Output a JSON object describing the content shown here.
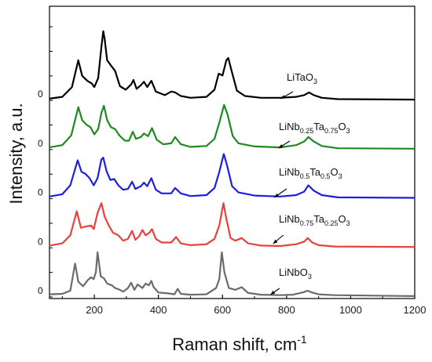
{
  "chart_data": {
    "type": "line",
    "xlabel": "Raman shift, cm",
    "xlabel_superscript": "-1",
    "ylabel": "Intensity, a.u.",
    "xlim": [
      60,
      1200
    ],
    "x_ticks": [
      200,
      400,
      600,
      800,
      1000,
      1200
    ],
    "offset_zero_label": "0",
    "grid": false,
    "series": [
      {
        "name": "LiNbO3",
        "label_parts": [
          {
            "t": "LiNbO",
            "sub": false
          },
          {
            "t": "3",
            "sub": true
          }
        ],
        "color": "#6b6b6b",
        "baseline": 0.0,
        "points": [
          [
            60,
            0.06
          ],
          [
            100,
            0.07
          ],
          [
            125,
            0.14
          ],
          [
            140,
            0.75
          ],
          [
            150,
            0.34
          ],
          [
            165,
            0.24
          ],
          [
            180,
            0.38
          ],
          [
            190,
            0.44
          ],
          [
            198,
            0.4
          ],
          [
            205,
            0.56
          ],
          [
            210,
            1.0
          ],
          [
            220,
            0.46
          ],
          [
            230,
            0.42
          ],
          [
            240,
            0.3
          ],
          [
            255,
            0.26
          ],
          [
            265,
            0.2
          ],
          [
            280,
            0.16
          ],
          [
            290,
            0.12
          ],
          [
            305,
            0.2
          ],
          [
            315,
            0.32
          ],
          [
            325,
            0.16
          ],
          [
            335,
            0.28
          ],
          [
            350,
            0.2
          ],
          [
            360,
            0.3
          ],
          [
            370,
            0.26
          ],
          [
            378,
            0.36
          ],
          [
            385,
            0.22
          ],
          [
            400,
            0.1
          ],
          [
            430,
            0.08
          ],
          [
            450,
            0.06
          ],
          [
            460,
            0.18
          ],
          [
            470,
            0.07
          ],
          [
            500,
            0.05
          ],
          [
            550,
            0.06
          ],
          [
            580,
            0.2
          ],
          [
            590,
            0.4
          ],
          [
            598,
            1.0
          ],
          [
            606,
            0.55
          ],
          [
            620,
            0.2
          ],
          [
            640,
            0.16
          ],
          [
            660,
            0.22
          ],
          [
            680,
            0.09
          ],
          [
            720,
            0.05
          ],
          [
            780,
            0.04
          ],
          [
            820,
            0.05
          ],
          [
            855,
            0.11
          ],
          [
            865,
            0.14
          ],
          [
            880,
            0.1
          ],
          [
            900,
            0.06
          ],
          [
            950,
            0.04
          ],
          [
            1200,
            0.02
          ]
        ]
      },
      {
        "name": "LiNb0.75Ta0.25O3",
        "label_parts": [
          {
            "t": "LiNb",
            "sub": false
          },
          {
            "t": "0.75",
            "sub": true
          },
          {
            "t": "Ta",
            "sub": false
          },
          {
            "t": "0.25",
            "sub": true
          },
          {
            "t": "O",
            "sub": false
          },
          {
            "t": "3",
            "sub": true
          }
        ],
        "color": "#e8413c",
        "baseline": 1.1,
        "points": [
          [
            60,
            0.05
          ],
          [
            100,
            0.1
          ],
          [
            125,
            0.28
          ],
          [
            145,
            0.82
          ],
          [
            158,
            0.45
          ],
          [
            175,
            0.48
          ],
          [
            190,
            0.5
          ],
          [
            198,
            0.42
          ],
          [
            210,
            0.78
          ],
          [
            222,
            1.0
          ],
          [
            232,
            0.7
          ],
          [
            245,
            0.5
          ],
          [
            258,
            0.34
          ],
          [
            275,
            0.28
          ],
          [
            290,
            0.16
          ],
          [
            305,
            0.2
          ],
          [
            318,
            0.38
          ],
          [
            328,
            0.18
          ],
          [
            340,
            0.26
          ],
          [
            350,
            0.4
          ],
          [
            360,
            0.28
          ],
          [
            372,
            0.34
          ],
          [
            380,
            0.42
          ],
          [
            392,
            0.2
          ],
          [
            410,
            0.12
          ],
          [
            440,
            0.12
          ],
          [
            455,
            0.24
          ],
          [
            470,
            0.1
          ],
          [
            500,
            0.06
          ],
          [
            550,
            0.08
          ],
          [
            575,
            0.2
          ],
          [
            590,
            0.5
          ],
          [
            603,
            1.0
          ],
          [
            612,
            0.65
          ],
          [
            625,
            0.22
          ],
          [
            640,
            0.16
          ],
          [
            660,
            0.22
          ],
          [
            680,
            0.1
          ],
          [
            720,
            0.05
          ],
          [
            780,
            0.04
          ],
          [
            830,
            0.08
          ],
          [
            855,
            0.14
          ],
          [
            866,
            0.22
          ],
          [
            880,
            0.12
          ],
          [
            900,
            0.06
          ],
          [
            950,
            0.03
          ],
          [
            1200,
            0.02
          ]
        ]
      },
      {
        "name": "LiNb0.5Ta0.5O3",
        "label_parts": [
          {
            "t": "LiNb",
            "sub": false
          },
          {
            "t": "0.5",
            "sub": true
          },
          {
            "t": "Ta",
            "sub": false
          },
          {
            "t": "0.5",
            "sub": true
          },
          {
            "t": "O",
            "sub": false
          },
          {
            "t": "3",
            "sub": true
          }
        ],
        "color": "#1e1ee0",
        "baseline": 2.2,
        "points": [
          [
            60,
            0.05
          ],
          [
            100,
            0.1
          ],
          [
            125,
            0.3
          ],
          [
            148,
            0.86
          ],
          [
            160,
            0.6
          ],
          [
            172,
            0.56
          ],
          [
            185,
            0.46
          ],
          [
            198,
            0.3
          ],
          [
            210,
            0.46
          ],
          [
            222,
            0.88
          ],
          [
            228,
            0.92
          ],
          [
            238,
            0.62
          ],
          [
            250,
            0.42
          ],
          [
            262,
            0.44
          ],
          [
            275,
            0.3
          ],
          [
            290,
            0.2
          ],
          [
            305,
            0.22
          ],
          [
            318,
            0.38
          ],
          [
            328,
            0.22
          ],
          [
            345,
            0.28
          ],
          [
            355,
            0.36
          ],
          [
            365,
            0.28
          ],
          [
            378,
            0.46
          ],
          [
            392,
            0.2
          ],
          [
            410,
            0.12
          ],
          [
            440,
            0.12
          ],
          [
            452,
            0.24
          ],
          [
            470,
            0.12
          ],
          [
            500,
            0.06
          ],
          [
            550,
            0.08
          ],
          [
            575,
            0.24
          ],
          [
            590,
            0.6
          ],
          [
            604,
            1.0
          ],
          [
            614,
            0.75
          ],
          [
            630,
            0.28
          ],
          [
            650,
            0.14
          ],
          [
            700,
            0.07
          ],
          [
            780,
            0.05
          ],
          [
            830,
            0.08
          ],
          [
            855,
            0.16
          ],
          [
            868,
            0.3
          ],
          [
            885,
            0.18
          ],
          [
            910,
            0.08
          ],
          [
            960,
            0.03
          ],
          [
            1200,
            0.02
          ]
        ]
      },
      {
        "name": "LiNb0.25Ta0.75O3",
        "label_parts": [
          {
            "t": "LiNb",
            "sub": false
          },
          {
            "t": "0.25",
            "sub": true
          },
          {
            "t": "Ta",
            "sub": false
          },
          {
            "t": "0.75",
            "sub": true
          },
          {
            "t": "O",
            "sub": false
          },
          {
            "t": "3",
            "sub": true
          }
        ],
        "color": "#1f8a1f",
        "baseline": 3.3,
        "points": [
          [
            60,
            0.05
          ],
          [
            100,
            0.1
          ],
          [
            128,
            0.32
          ],
          [
            150,
            0.95
          ],
          [
            162,
            0.66
          ],
          [
            175,
            0.56
          ],
          [
            188,
            0.5
          ],
          [
            200,
            0.34
          ],
          [
            212,
            0.46
          ],
          [
            222,
            0.82
          ],
          [
            230,
            0.98
          ],
          [
            240,
            0.66
          ],
          [
            252,
            0.5
          ],
          [
            265,
            0.46
          ],
          [
            278,
            0.32
          ],
          [
            295,
            0.2
          ],
          [
            308,
            0.2
          ],
          [
            320,
            0.4
          ],
          [
            330,
            0.24
          ],
          [
            345,
            0.28
          ],
          [
            355,
            0.36
          ],
          [
            368,
            0.3
          ],
          [
            380,
            0.48
          ],
          [
            395,
            0.22
          ],
          [
            415,
            0.12
          ],
          [
            440,
            0.14
          ],
          [
            452,
            0.28
          ],
          [
            470,
            0.12
          ],
          [
            500,
            0.06
          ],
          [
            550,
            0.08
          ],
          [
            575,
            0.24
          ],
          [
            592,
            0.65
          ],
          [
            605,
            1.0
          ],
          [
            616,
            0.78
          ],
          [
            632,
            0.3
          ],
          [
            650,
            0.14
          ],
          [
            700,
            0.07
          ],
          [
            780,
            0.05
          ],
          [
            830,
            0.1
          ],
          [
            855,
            0.18
          ],
          [
            868,
            0.28
          ],
          [
            885,
            0.18
          ],
          [
            910,
            0.08
          ],
          [
            960,
            0.03
          ],
          [
            1200,
            0.02
          ]
        ]
      },
      {
        "name": "LiTaO3",
        "label_parts": [
          {
            "t": "LiTaO",
            "sub": false
          },
          {
            "t": "3",
            "sub": true
          }
        ],
        "color": "#000000",
        "baseline": 4.4,
        "points": [
          [
            60,
            0.04
          ],
          [
            100,
            0.08
          ],
          [
            130,
            0.3
          ],
          [
            150,
            0.9
          ],
          [
            162,
            0.55
          ],
          [
            178,
            0.44
          ],
          [
            192,
            0.38
          ],
          [
            200,
            0.3
          ],
          [
            212,
            0.5
          ],
          [
            222,
            1.2
          ],
          [
            228,
            1.55
          ],
          [
            232,
            1.38
          ],
          [
            240,
            0.9
          ],
          [
            252,
            0.78
          ],
          [
            265,
            0.66
          ],
          [
            280,
            0.32
          ],
          [
            298,
            0.24
          ],
          [
            315,
            0.36
          ],
          [
            322,
            0.46
          ],
          [
            332,
            0.26
          ],
          [
            345,
            0.34
          ],
          [
            355,
            0.42
          ],
          [
            365,
            0.3
          ],
          [
            378,
            0.44
          ],
          [
            392,
            0.2
          ],
          [
            420,
            0.12
          ],
          [
            440,
            0.2
          ],
          [
            452,
            0.18
          ],
          [
            470,
            0.1
          ],
          [
            500,
            0.06
          ],
          [
            550,
            0.08
          ],
          [
            575,
            0.24
          ],
          [
            588,
            0.6
          ],
          [
            600,
            0.56
          ],
          [
            612,
            0.9
          ],
          [
            618,
            0.95
          ],
          [
            630,
            0.62
          ],
          [
            645,
            0.22
          ],
          [
            670,
            0.1
          ],
          [
            720,
            0.06
          ],
          [
            780,
            0.06
          ],
          [
            830,
            0.08
          ],
          [
            855,
            0.12
          ],
          [
            870,
            0.18
          ],
          [
            885,
            0.12
          ],
          [
            910,
            0.06
          ],
          [
            960,
            0.03
          ],
          [
            1200,
            0.02
          ]
        ]
      }
    ]
  }
}
